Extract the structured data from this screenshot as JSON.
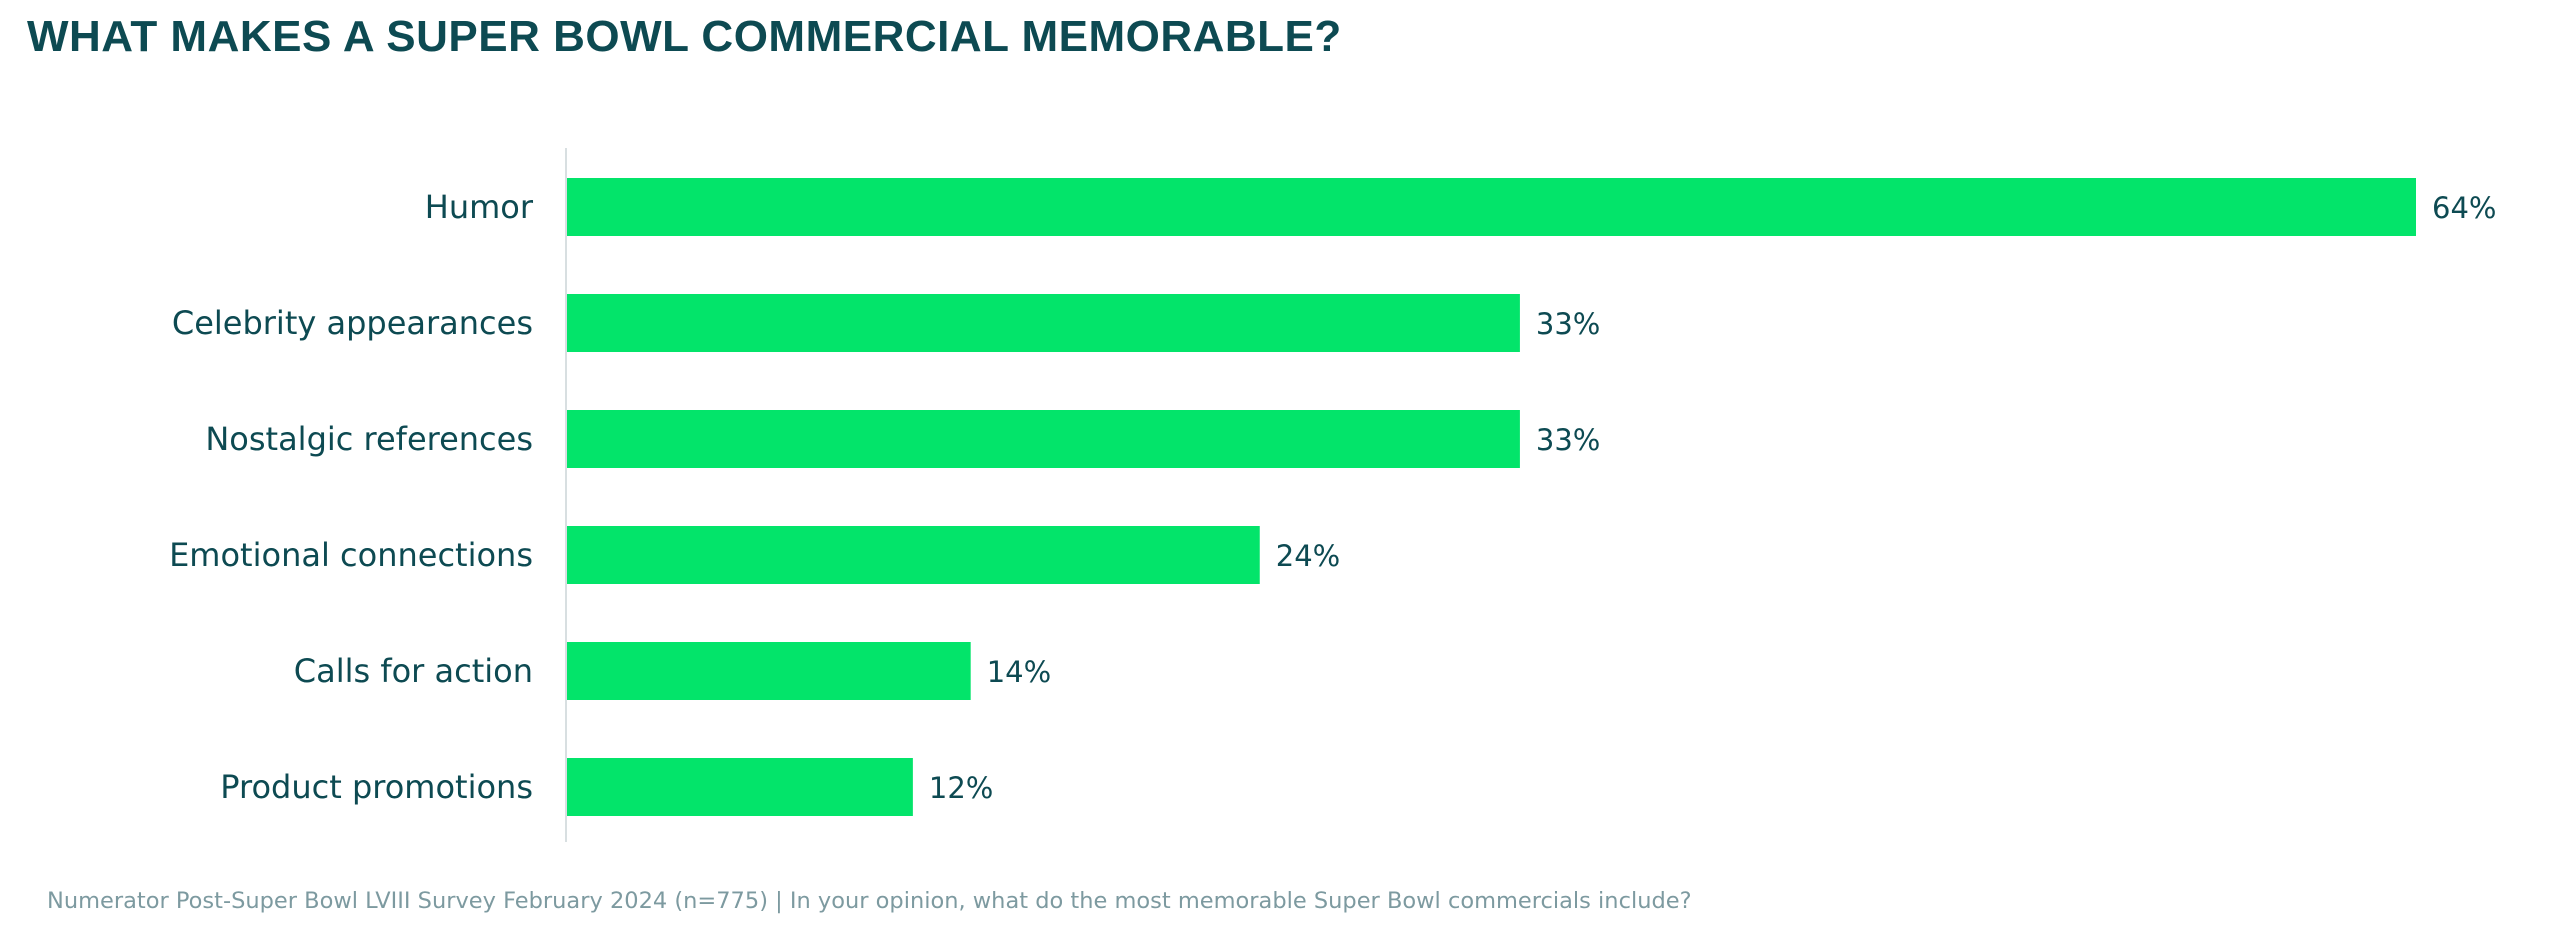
{
  "title": "WHAT MAKES A SUPER BOWL COMMERCIAL MEMORABLE?",
  "source": "Numerator Post-Super Bowl LVIII Survey February 2024 (n=775) | In your opinion, what do the most memorable Super Bowl commercials include?",
  "colors": {
    "bar": "#03e46a",
    "text": "#0d4a52",
    "axis": "#d8dfe1",
    "source": "#7d9aa0"
  },
  "chart_data": {
    "type": "bar",
    "orientation": "horizontal",
    "categories": [
      "Humor",
      "Celebrity appearances",
      "Nostalgic references",
      "Emotional connections",
      "Calls for action",
      "Product promotions"
    ],
    "values": [
      64,
      33,
      33,
      24,
      14,
      12
    ],
    "value_labels": [
      "64%",
      "33%",
      "33%",
      "24%",
      "14%",
      "12%"
    ],
    "unit": "%",
    "xlim": [
      0,
      64
    ],
    "grid": false,
    "legend": "none"
  }
}
